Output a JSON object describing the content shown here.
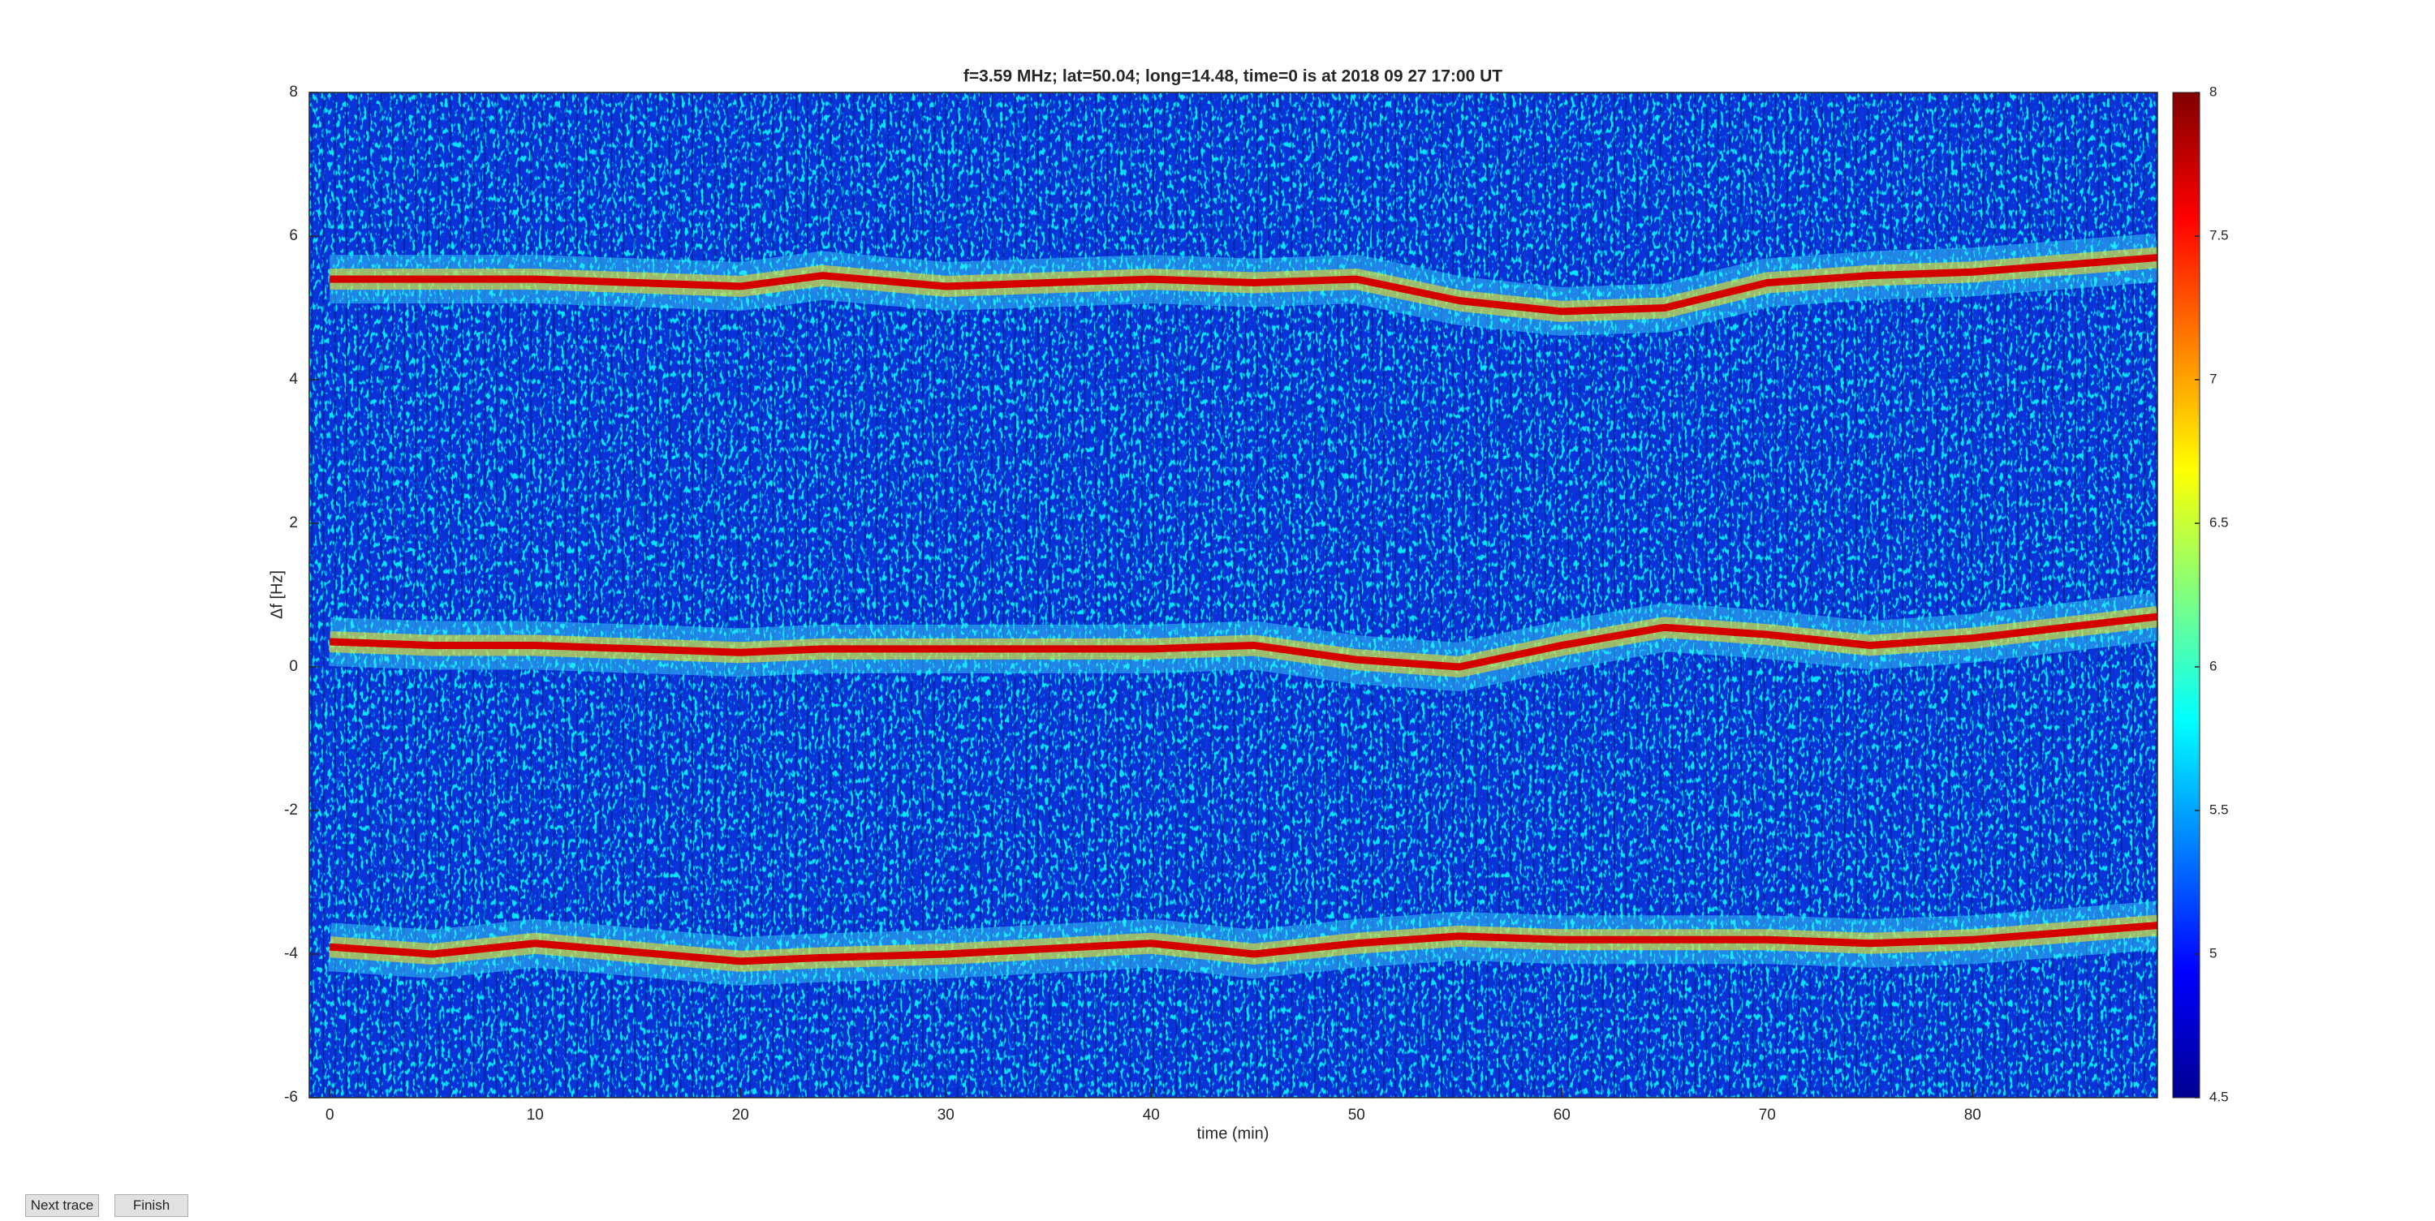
{
  "chart_data": {
    "type": "line",
    "title": "f=3.59 MHz;  lat=50.04; long=14.48, time=0 is at 2018 09 27 17:00 UT",
    "xlabel": "time (min)",
    "ylabel": "Δf [Hz]",
    "x": [
      0,
      5,
      10,
      20,
      24,
      30,
      40,
      45,
      50,
      55,
      60,
      65,
      70,
      75,
      80,
      89
    ],
    "series": [
      {
        "color": "#d40000",
        "values": [
          5.4,
          5.4,
          5.4,
          5.3,
          5.45,
          5.3,
          5.4,
          5.35,
          5.4,
          5.1,
          4.95,
          5.0,
          5.35,
          5.45,
          5.5,
          5.7
        ]
      },
      {
        "color": "#d40000",
        "values": [
          0.35,
          0.3,
          0.3,
          0.2,
          0.25,
          0.25,
          0.25,
          0.3,
          0.1,
          0.0,
          0.3,
          0.55,
          0.45,
          0.3,
          0.4,
          0.7
        ]
      },
      {
        "color": "#d40000",
        "values": [
          -3.9,
          -4.0,
          -3.85,
          -4.1,
          -4.05,
          -4.0,
          -3.85,
          -4.0,
          -3.85,
          -3.75,
          -3.8,
          -3.8,
          -3.8,
          -3.85,
          -3.8,
          -3.6
        ]
      }
    ],
    "xlim": [
      -1,
      89
    ],
    "xticks": [
      0,
      10,
      20,
      30,
      40,
      50,
      60,
      70,
      80
    ],
    "ylim": [
      -6,
      8
    ],
    "yticks": [
      -6,
      -4,
      -2,
      0,
      2,
      4,
      6,
      8
    ],
    "clim": [
      4.5,
      8
    ],
    "cticks": [
      4.5,
      5,
      5.5,
      6,
      6.5,
      7,
      7.5,
      8
    ]
  },
  "buttons": [
    "Next trace",
    "Finish"
  ]
}
